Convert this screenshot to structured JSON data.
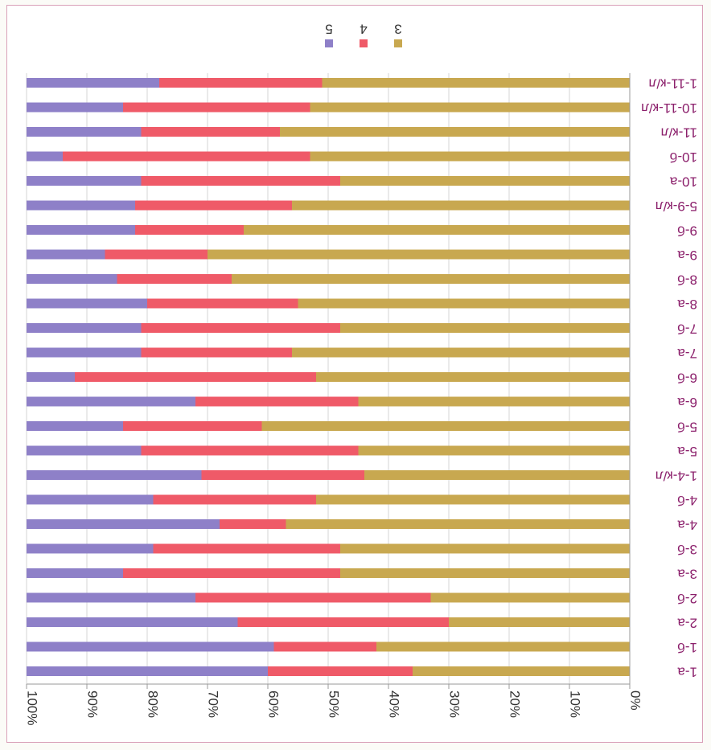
{
  "chart_data": {
    "type": "bar",
    "orientation": "horizontal-stacked-100-percent-rotated-180",
    "categories": [
      "1-a",
      "1-б",
      "2-a",
      "2-б",
      "3-a",
      "3-б",
      "4-a",
      "4-б",
      "1-4-к/л",
      "5-a",
      "5-б",
      "6-a",
      "6-б",
      "7-a",
      "7-б",
      "8-a",
      "8-б",
      "9-a",
      "9-б",
      "5-9-к/л",
      "10-a",
      "10-б",
      "11-к/л",
      "10-11-к/л",
      "1-11-к/л"
    ],
    "series": [
      {
        "name": "3",
        "color": "#c8a850",
        "values": [
          36,
          42,
          30,
          33,
          48,
          48,
          57,
          52,
          44,
          45,
          61,
          45,
          52,
          56,
          48,
          55,
          66,
          70,
          64,
          56,
          48,
          53,
          58,
          53,
          51
        ]
      },
      {
        "name": "4",
        "color": "#ef5a68",
        "values": [
          24,
          17,
          35,
          39,
          36,
          31,
          11,
          27,
          27,
          36,
          23,
          27,
          40,
          25,
          33,
          25,
          19,
          17,
          18,
          26,
          33,
          41,
          23,
          31,
          27
        ]
      },
      {
        "name": "5",
        "color": "#8e80c8",
        "values": [
          40,
          41,
          35,
          28,
          16,
          21,
          32,
          21,
          29,
          19,
          16,
          28,
          8,
          19,
          19,
          20,
          15,
          13,
          18,
          18,
          19,
          6,
          19,
          16,
          22
        ]
      }
    ],
    "x_ticks": [
      "0%",
      "10%",
      "20%",
      "30%",
      "40%",
      "50%",
      "60%",
      "70%",
      "80%",
      "90%",
      "100%"
    ],
    "xlim": [
      0,
      100
    ],
    "grid": true,
    "legend": "top"
  }
}
